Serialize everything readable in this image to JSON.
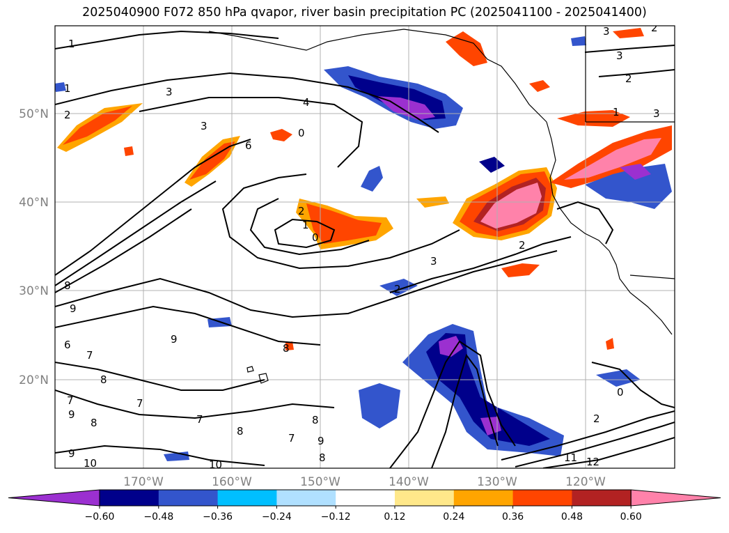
{
  "title": "2025040900 F072 850 hPa qvapor, river basin precipitation PC (2025041100 - 2025041400)",
  "map": {
    "lon_labels": [
      "170°W",
      "160°W",
      "150°W",
      "140°W",
      "130°W",
      "120°W"
    ],
    "lat_labels": [
      "50°N",
      "40°N",
      "30°N",
      "20°N"
    ],
    "contour_labels": [
      "1",
      "3",
      "2",
      "4",
      "3",
      "3",
      "2",
      "1",
      "3",
      "6",
      "0",
      "2",
      "1",
      "0",
      "3",
      "2",
      "2",
      "9",
      "8",
      "9",
      "8",
      "6",
      "7",
      "8",
      "9",
      "7",
      "8",
      "7",
      "8",
      "9",
      "10",
      "7",
      "8",
      "7",
      "9",
      "8",
      "10",
      "11",
      "12",
      "2",
      "0",
      "1",
      "2",
      "3"
    ]
  },
  "colorbar": {
    "ticks": [
      "−0.60",
      "−0.48",
      "−0.36",
      "−0.24",
      "−0.12",
      "0.12",
      "0.24",
      "0.36",
      "0.48",
      "0.60"
    ],
    "colors": [
      "#9b30d0",
      "#00008b",
      "#3355cc",
      "#00bfff",
      "#b0e0ff",
      "#ffffff",
      "#ffe88a",
      "#ffa500",
      "#ff4500",
      "#b22222",
      "#ff82aa"
    ]
  }
}
